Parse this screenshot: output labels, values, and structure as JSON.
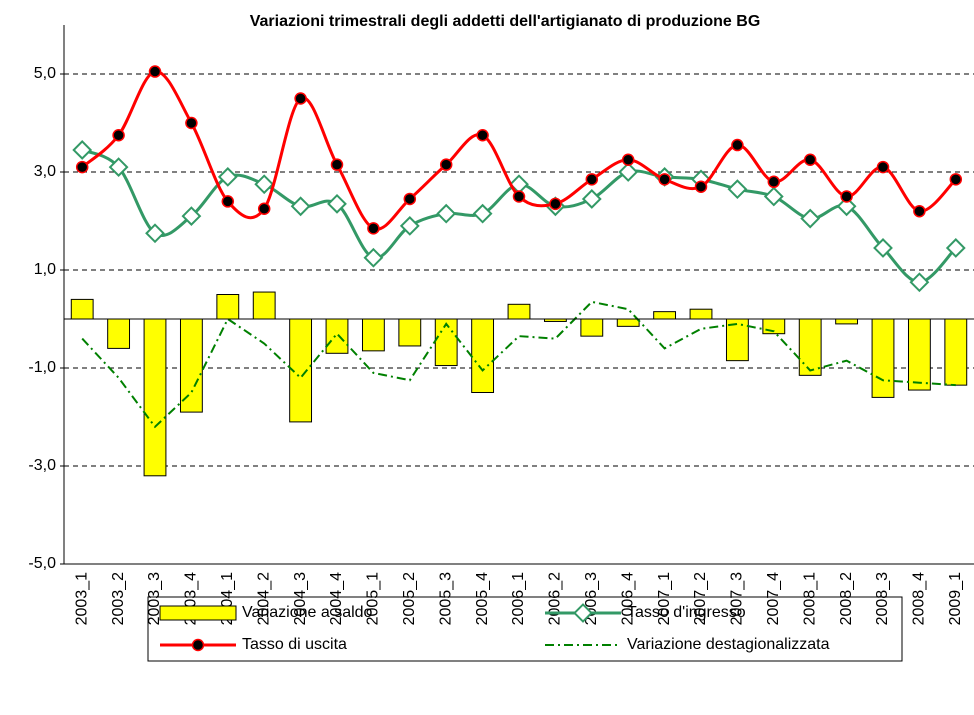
{
  "chart_data": {
    "type": "bar-line",
    "title": "Variazioni trimestrali degli addetti dell'artigianato di produzione BG",
    "categories": [
      "2003_1",
      "2003_2",
      "2003_3",
      "2003_4",
      "2004_1",
      "2004_2",
      "2004_3",
      "2004_4",
      "2005_1",
      "2005_2",
      "2005_3",
      "2005_4",
      "2006_1",
      "2006_2",
      "2006_3",
      "2006_4",
      "2007_1",
      "2007_2",
      "2007_3",
      "2007_4",
      "2008_1",
      "2008_2",
      "2008_3",
      "2008_4",
      "2009_1"
    ],
    "series": [
      {
        "name": "Variazione a saldo",
        "color": "#ffff00",
        "kind": "bar",
        "values": [
          0.4,
          -0.6,
          -3.2,
          -1.9,
          0.5,
          0.55,
          -2.1,
          -0.7,
          -0.65,
          -0.55,
          -0.95,
          -1.5,
          0.3,
          -0.05,
          -0.35,
          -0.15,
          0.15,
          0.2,
          -0.85,
          -0.3,
          -1.15,
          -0.1,
          -1.6,
          -1.45,
          -1.35
        ]
      },
      {
        "name": "Tasso d'ingresso",
        "color": "#339966",
        "kind": "line",
        "values": [
          3.45,
          3.1,
          1.75,
          2.1,
          2.9,
          2.75,
          2.3,
          2.35,
          1.25,
          1.9,
          2.15,
          2.15,
          2.75,
          2.3,
          2.45,
          3.0,
          2.9,
          2.85,
          2.65,
          2.5,
          2.05,
          2.3,
          1.45,
          0.75,
          1.45
        ]
      },
      {
        "name": "Tasso di uscita",
        "color": "#ff0000",
        "kind": "line",
        "values": [
          3.1,
          3.75,
          5.05,
          4.0,
          2.4,
          2.25,
          4.5,
          3.15,
          1.85,
          2.45,
          3.15,
          3.75,
          2.5,
          2.35,
          2.85,
          3.25,
          2.85,
          2.7,
          3.55,
          2.8,
          3.25,
          2.5,
          3.1,
          2.2,
          2.85
        ]
      },
      {
        "name": "Variazione destagionalizzata",
        "color": "#008000",
        "kind": "dashline",
        "values": [
          -0.4,
          -1.2,
          -2.2,
          -1.5,
          0.0,
          -0.5,
          -1.2,
          -0.3,
          -1.1,
          -1.25,
          -0.1,
          -1.05,
          -0.35,
          -0.4,
          0.35,
          0.2,
          -0.6,
          -0.2,
          -0.1,
          -0.25,
          -1.05,
          -0.85,
          -1.25,
          -1.3,
          -1.35
        ]
      }
    ],
    "ylim": [
      -5,
      6
    ],
    "yticks": [
      {
        "value": 5,
        "label": "5,0"
      },
      {
        "value": 3,
        "label": "3,0"
      },
      {
        "value": 1,
        "label": "1,0"
      },
      {
        "value": -1,
        "label": "-1,0"
      },
      {
        "value": -3,
        "label": "-3,0"
      },
      {
        "value": -5,
        "label": "-5,0"
      }
    ],
    "grid": true
  }
}
